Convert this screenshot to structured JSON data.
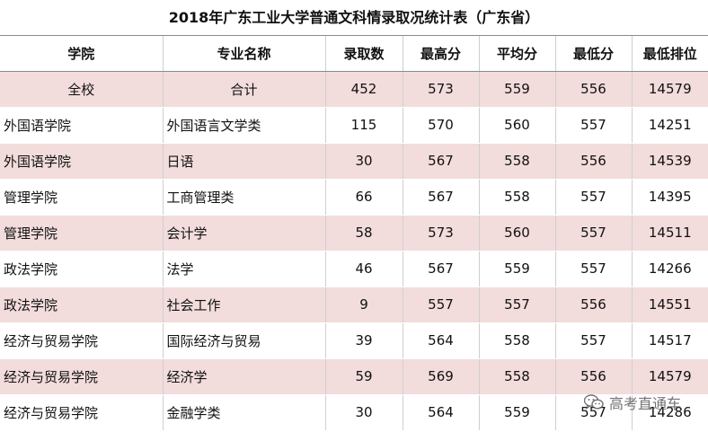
{
  "title": "2018年广东工业大学普通文科情录取况统计表（广东省）",
  "columns": [
    "学院",
    "专业名称",
    "录取数",
    "最高分",
    "平均分",
    "最低分",
    "最低排位"
  ],
  "rows": [
    {
      "college": "全校",
      "major": "合计",
      "admitted": "452",
      "max": "573",
      "avg": "559",
      "min": "556",
      "min_rank": "14579"
    },
    {
      "college": "外国语学院",
      "major": "外国语言文学类",
      "admitted": "115",
      "max": "570",
      "avg": "560",
      "min": "557",
      "min_rank": "14251"
    },
    {
      "college": "外国语学院",
      "major": "日语",
      "admitted": "30",
      "max": "567",
      "avg": "558",
      "min": "556",
      "min_rank": "14539"
    },
    {
      "college": "管理学院",
      "major": "工商管理类",
      "admitted": "66",
      "max": "567",
      "avg": "558",
      "min": "557",
      "min_rank": "14395"
    },
    {
      "college": "管理学院",
      "major": "会计学",
      "admitted": "58",
      "max": "573",
      "avg": "560",
      "min": "557",
      "min_rank": "14511"
    },
    {
      "college": "政法学院",
      "major": "法学",
      "admitted": "46",
      "max": "567",
      "avg": "559",
      "min": "557",
      "min_rank": "14266"
    },
    {
      "college": "政法学院",
      "major": "社会工作",
      "admitted": "9",
      "max": "557",
      "avg": "557",
      "min": "556",
      "min_rank": "14551"
    },
    {
      "college": "经济与贸易学院",
      "major": "国际经济与贸易",
      "admitted": "39",
      "max": "564",
      "avg": "558",
      "min": "557",
      "min_rank": "14517"
    },
    {
      "college": "经济与贸易学院",
      "major": "经济学",
      "admitted": "59",
      "max": "569",
      "avg": "558",
      "min": "556",
      "min_rank": "14579"
    },
    {
      "college": "经济与贸易学院",
      "major": "金融学类",
      "admitted": "30",
      "max": "564",
      "avg": "559",
      "min": "557",
      "min_rank": "14286"
    }
  ],
  "watermark": {
    "text": "高考直通车",
    "icon": "wechat-icon"
  },
  "colors": {
    "row_highlight": "#f2dcdc",
    "header_rule": "#8a8a8a"
  }
}
